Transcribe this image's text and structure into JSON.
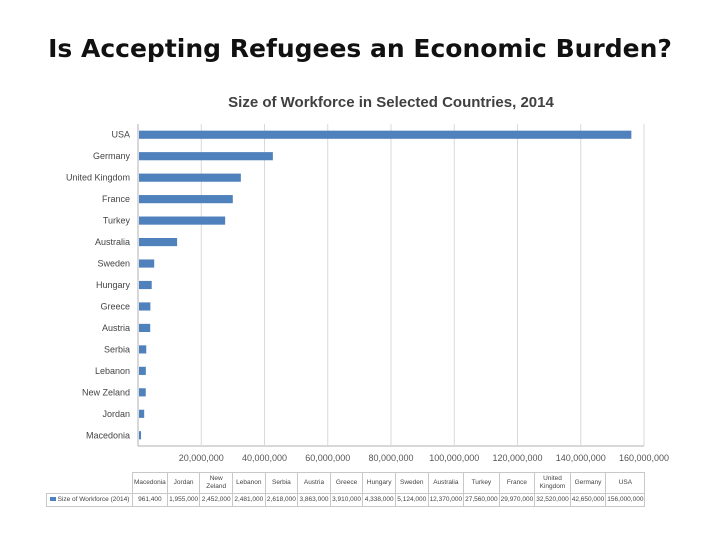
{
  "slide": {
    "title": "Is Accepting Refugees an Economic Burden?"
  },
  "chart_data": {
    "type": "bar",
    "orientation": "horizontal",
    "title": "Size of Workforce in Selected Countries, 2014",
    "categories": [
      "USA",
      "Germany",
      "United Kingdom",
      "France",
      "Turkey",
      "Australia",
      "Sweden",
      "Hungary",
      "Greece",
      "Austria",
      "Serbia",
      "Lebanon",
      "New Zeland",
      "Jordan",
      "Macedonia"
    ],
    "series": [
      {
        "name": "Size of Workforce (2014)",
        "color": "#4f81bd",
        "values": [
          156000000,
          42650000,
          32520000,
          29970000,
          27560000,
          12370000,
          5124000,
          4338000,
          3910000,
          3863000,
          2618000,
          2481000,
          2452000,
          1955000,
          961400
        ]
      }
    ],
    "x_ticks": [
      "20,000,000",
      "40,000,000",
      "60,000,000",
      "80,000,000",
      "100,000,000",
      "120,000,000",
      "140,000,000",
      "160,000,000"
    ],
    "x_tick_values": [
      20000000,
      40000000,
      60000000,
      80000000,
      100000000,
      120000000,
      140000000,
      160000000
    ],
    "xlim": [
      0,
      160000000
    ],
    "grid": true,
    "legend": "bottom-left (data table)",
    "table": {
      "headers": [
        "Macedonia",
        "Jordan",
        "New Zeland",
        "Lebanon",
        "Serbia",
        "Austria",
        "Greece",
        "Hungary",
        "Sweden",
        "Australia",
        "Turkey",
        "France",
        "United Kingdom",
        "Germany",
        "USA"
      ],
      "row_label": "Size of Workforce (2014)",
      "row_values": [
        "961,400",
        "1,955,000",
        "2,452,000",
        "2,481,000",
        "2,618,000",
        "3,863,000",
        "3,910,000",
        "4,338,000",
        "5,124,000",
        "12,370,000",
        "27,560,000",
        "29,970,000",
        "32,520,000",
        "42,650,000",
        "156,000,000"
      ]
    }
  }
}
